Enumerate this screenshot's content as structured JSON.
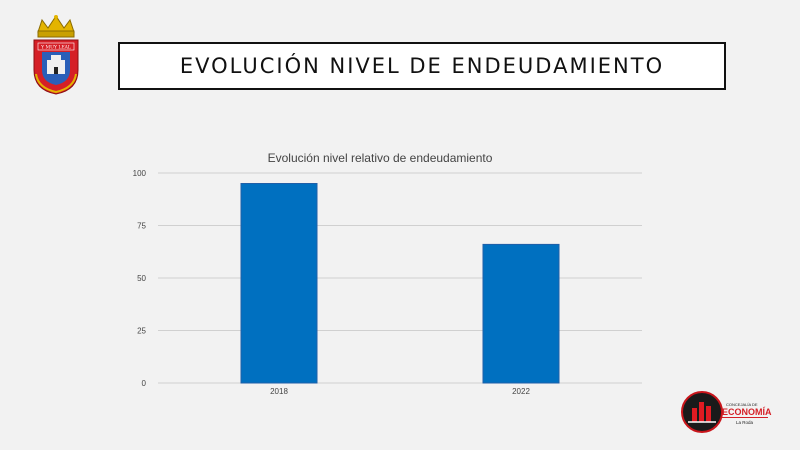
{
  "header": {
    "title": "EVOLUCIÓN NIVEL DE ENDEUDAMIENTO"
  },
  "crest": {
    "icon": "coat-of-arms-icon",
    "motto": "Y MUY LEAL"
  },
  "footer_logo": {
    "icon": "concejalia-economia-logo",
    "line1": "CONCEJALÍA DE",
    "line2": "ECONOMÍA",
    "line3": "La Roda"
  },
  "chart_data": {
    "type": "bar",
    "title": "Evolución nivel relativo de endeudamiento",
    "categories": [
      "2018",
      "2022"
    ],
    "values": [
      95,
      66
    ],
    "ylim": [
      0,
      100
    ],
    "yticks": [
      "0",
      "25",
      "50",
      "75",
      "100"
    ],
    "bar_color": "#0070c0",
    "grid": true,
    "legend": "none"
  }
}
